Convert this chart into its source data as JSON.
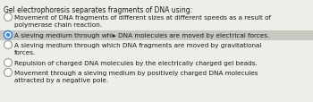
{
  "title": "Gel electrophoresis separates fragments of DNA using:",
  "options": [
    {
      "text": "Movement of DNA fragments of different sizes at different speeds as a result of\npolymerase chain reaction.",
      "selected": false,
      "highlighted": false
    },
    {
      "text": "A sieving medium through whi▸ DNA molecules are moved by electrical forces.",
      "selected": true,
      "highlighted": true
    },
    {
      "text": "A sieving medium through which DNA fragments are moved by gravitational\nforces.",
      "selected": false,
      "highlighted": false
    },
    {
      "text": "Repulsion of charged DNA molecules by the electrically charged gel beads.",
      "selected": false,
      "highlighted": false
    },
    {
      "text": "Movement through a sieving medium by positively charged DNA molecules\nattracted by a negative pole.",
      "selected": false,
      "highlighted": false
    }
  ],
  "bg_color": "#eeeee8",
  "highlight_color": "#c8c8c0",
  "title_fontsize": 5.5,
  "option_fontsize": 5.2,
  "text_color": "#1a1a1a",
  "circle_edge_selected": "#4488cc",
  "circle_fill_selected": "#4488cc",
  "circle_edge_unselected": "#999999",
  "circle_fill_unselected": "#ffffff"
}
